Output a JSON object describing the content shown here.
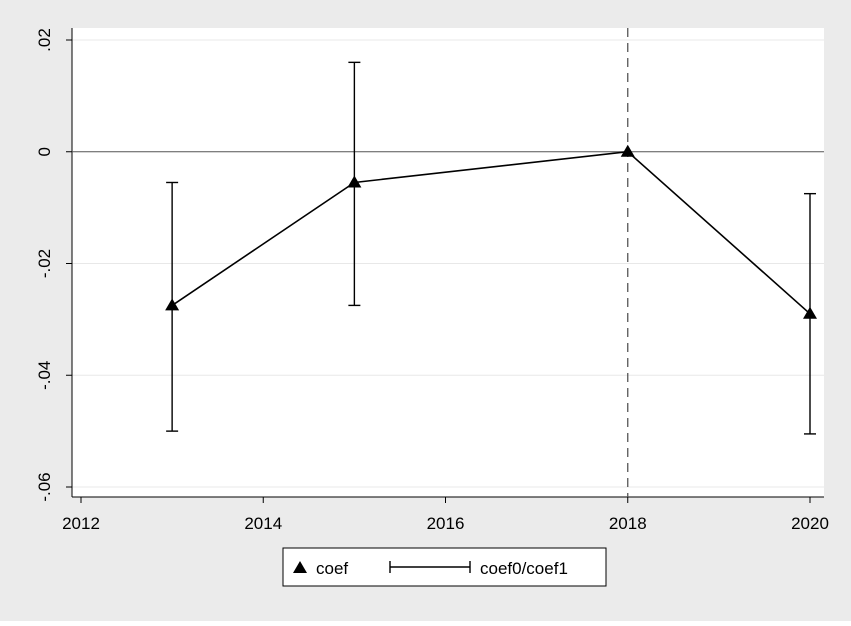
{
  "chart_data": {
    "type": "scatter",
    "title": "",
    "xlabel": "",
    "ylabel": "",
    "xlim": [
      2012,
      2020
    ],
    "ylim": [
      -0.06,
      0.02
    ],
    "x_ticks": [
      2012,
      2014,
      2016,
      2018,
      2020
    ],
    "x_tick_labels": [
      "2012",
      "2014",
      "2016",
      "2018",
      "2020"
    ],
    "y_ticks": [
      -0.06,
      -0.04,
      -0.02,
      0,
      0.02
    ],
    "y_tick_labels": [
      "-.06",
      "-.04",
      "-.02",
      "0",
      ".02"
    ],
    "grid": true,
    "reference_lines": {
      "horizontal_y": 0,
      "vertical_dashed_x": 2018
    },
    "legend": {
      "position": "bottom",
      "entries": [
        {
          "label": "coef",
          "marker": "triangle"
        },
        {
          "label": "coef0/coef1",
          "marker": "capped-range"
        }
      ]
    },
    "series": [
      {
        "name": "coef",
        "x": [
          2013,
          2015,
          2018,
          2020
        ],
        "values": [
          -0.0275,
          -0.0055,
          0.0,
          -0.029
        ],
        "ci_lower": [
          -0.05,
          -0.0275,
          0.0,
          -0.0505
        ],
        "ci_upper": [
          -0.0055,
          0.016,
          0.0,
          -0.0075
        ]
      }
    ],
    "colors": {
      "outer_background": "#ebebeb",
      "plot_background": "#ffffff",
      "gridline": "#e8e8e8",
      "line": "#000000"
    }
  }
}
